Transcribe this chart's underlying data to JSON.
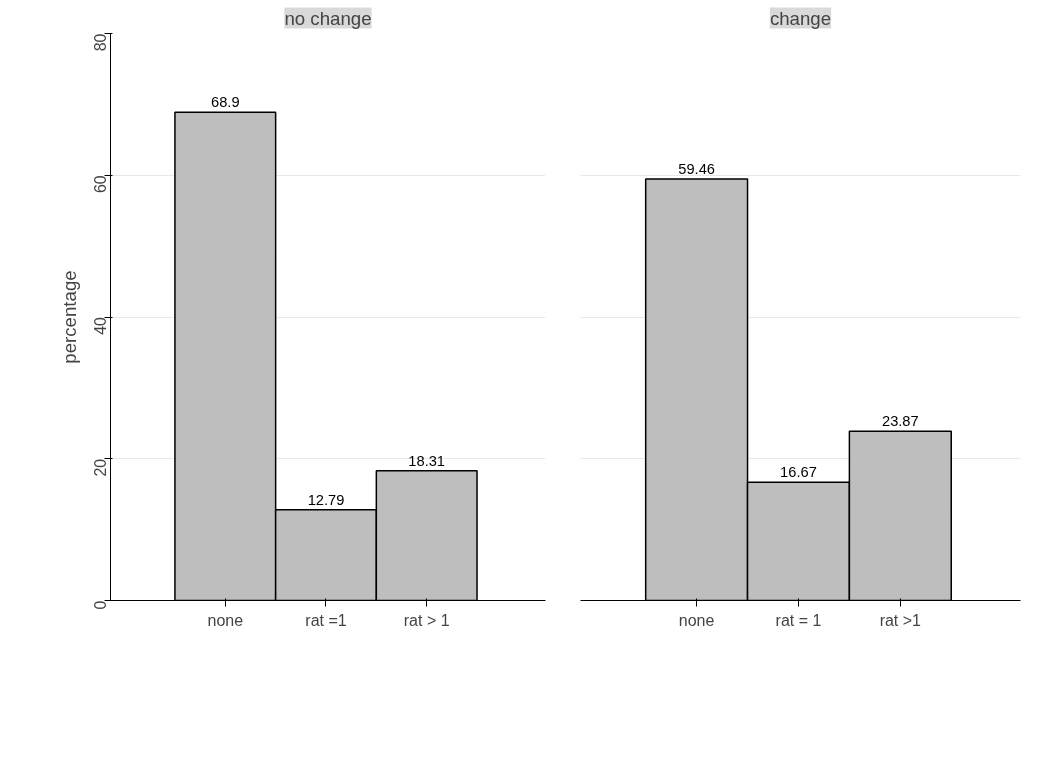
{
  "chart_data": [
    {
      "type": "bar",
      "title": "no change",
      "ylabel": "percentage",
      "categories": [
        "none",
        "rat =1",
        "rat > 1"
      ],
      "values": [
        68.9,
        12.79,
        18.31
      ],
      "color": "#bebebe",
      "ylim": [
        0,
        80
      ],
      "yticks": [
        0,
        20,
        40,
        60,
        80
      ],
      "grid": "y",
      "data_labels": true
    },
    {
      "type": "bar",
      "title": "change",
      "categories": [
        "none",
        "rat = 1",
        "rat >1"
      ],
      "values": [
        59.46,
        16.67,
        23.87
      ],
      "color": "#bebebe",
      "ylim": [
        0,
        80
      ],
      "yticks": [
        0,
        20,
        40,
        60,
        80
      ],
      "grid": "y",
      "data_labels": true,
      "tick_labels": "x"
    }
  ]
}
